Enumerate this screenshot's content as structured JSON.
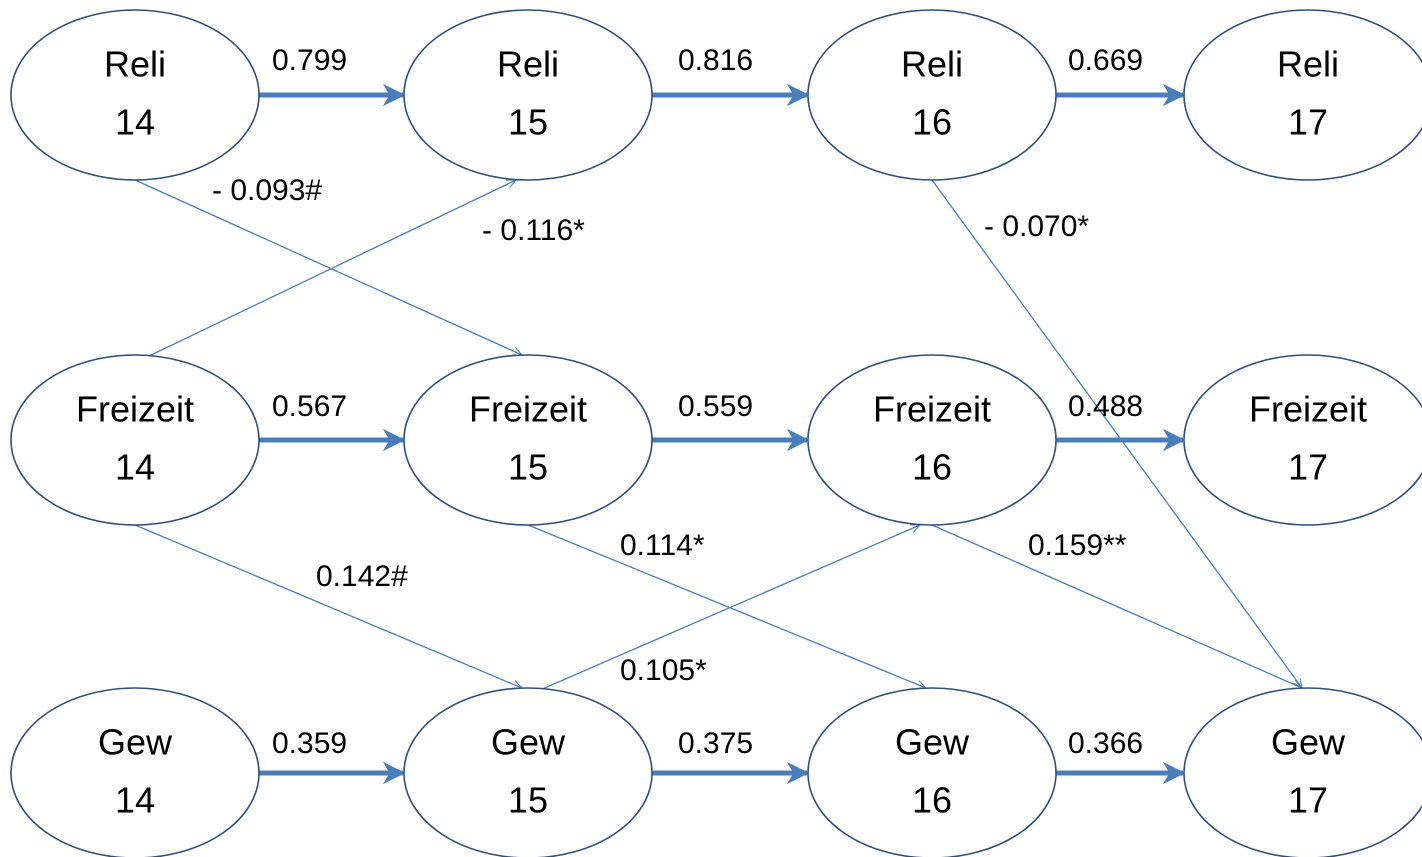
{
  "nodes": [
    {
      "name": "Reli",
      "wave": "14"
    },
    {
      "name": "Reli",
      "wave": "15"
    },
    {
      "name": "Reli",
      "wave": "16"
    },
    {
      "name": "Reli",
      "wave": "17"
    },
    {
      "name": "Freizeit",
      "wave": "14"
    },
    {
      "name": "Freizeit",
      "wave": "15"
    },
    {
      "name": "Freizeit",
      "wave": "16"
    },
    {
      "name": "Freizeit",
      "wave": "17"
    },
    {
      "name": "Gew",
      "wave": "14"
    },
    {
      "name": "Gew",
      "wave": "15"
    },
    {
      "name": "Gew",
      "wave": "16"
    },
    {
      "name": "Gew",
      "wave": "17"
    }
  ],
  "edges": [
    {
      "from": 0,
      "to": 1,
      "label": "0.799"
    },
    {
      "from": 1,
      "to": 2,
      "label": "0.816"
    },
    {
      "from": 2,
      "to": 3,
      "label": "0.669"
    },
    {
      "from": 4,
      "to": 5,
      "label": "0.567"
    },
    {
      "from": 5,
      "to": 6,
      "label": "0.559"
    },
    {
      "from": 6,
      "to": 7,
      "label": "0.488"
    },
    {
      "from": 8,
      "to": 9,
      "label": "0.359"
    },
    {
      "from": 9,
      "to": 10,
      "label": "0.375"
    },
    {
      "from": 10,
      "to": 11,
      "label": "0.366"
    },
    {
      "from": 0,
      "to": 5,
      "label": "- 0.093#"
    },
    {
      "from": 4,
      "to": 1,
      "label": "- 0.116*"
    },
    {
      "from": 2,
      "to": 11,
      "label": "- 0.070*"
    },
    {
      "from": 4,
      "to": 9,
      "label": "0.142#"
    },
    {
      "from": 5,
      "to": 10,
      "label": "0.114*"
    },
    {
      "from": 9,
      "to": 6,
      "label": "0.105*"
    },
    {
      "from": 6,
      "to": 11,
      "label": "0.159**"
    }
  ]
}
